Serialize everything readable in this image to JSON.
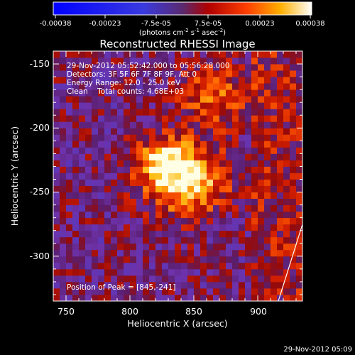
{
  "colorbar": {
    "tick_labels": [
      "-0.00038",
      "-0.00023",
      "-7.5e-05",
      "7.5e-05",
      "0.00023",
      "0.00038"
    ],
    "unit_label": "(photons cm",
    "unit_exp1": "-2",
    "unit_mid": " s",
    "unit_exp2": "-1",
    "unit_mid2": " asec",
    "unit_exp3": "-2",
    "unit_close": ")",
    "min": -0.00038,
    "max": 0.00038
  },
  "title": "Reconstructed RHESSI Image",
  "info": {
    "time_range": "29-Nov-2012 05:52:42.000 to 05:56:28.000",
    "detectors": "Detectors: 3F 5F 6F 7F 8F 9F, Att 0",
    "energy": "Energy Range: 12.0 - 25.0 keV",
    "clean": "Clean    Total counts: 4.68E+03",
    "peak": "Position of Peak = [845,-241]"
  },
  "axes": {
    "xlabel": "Heliocentric X (arcsec)",
    "ylabel": "Heliocentric Y (arcsec)",
    "x_ticks": [
      "750",
      "800",
      "850",
      "900"
    ],
    "y_ticks": [
      "-150",
      "-200",
      "-250",
      "-300"
    ]
  },
  "footer_timestamp": "29-Nov-2012 05:09",
  "chart_data": {
    "type": "heatmap",
    "title": "Reconstructed RHESSI Image",
    "xlabel": "Heliocentric X (arcsec)",
    "ylabel": "Heliocentric Y (arcsec)",
    "xlim": [
      740,
      935
    ],
    "ylim": [
      -335,
      -140
    ],
    "value_range": [
      -0.00038,
      0.00038
    ],
    "peak": [
      845,
      -241
    ],
    "colormap": [
      "#0000ff",
      "#7a2ea6",
      "#8a2be2",
      "#c00000",
      "#ff3000",
      "#ff8c00",
      "#ffd000",
      "#ffffff"
    ]
  }
}
